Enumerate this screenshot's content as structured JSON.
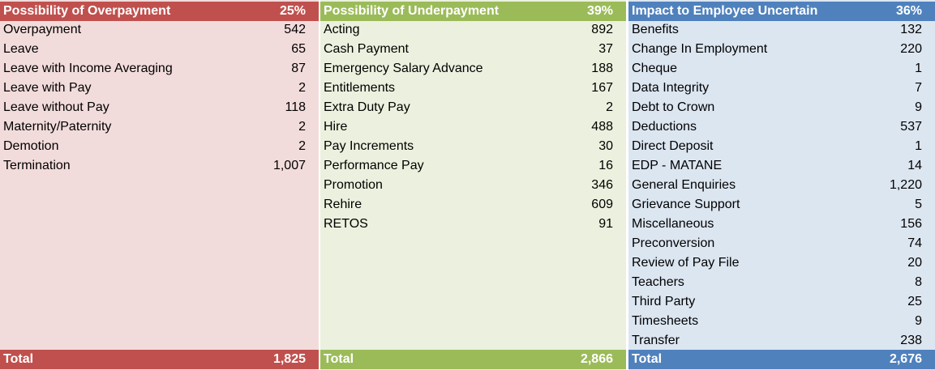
{
  "panels": [
    {
      "title": "Possibility of Overpayment",
      "percent": "25%",
      "rows": [
        {
          "label": "Overpayment",
          "value": "542"
        },
        {
          "label": "Leave",
          "value": "65"
        },
        {
          "label": "Leave with Income Averaging",
          "value": "87"
        },
        {
          "label": "Leave with Pay",
          "value": "2"
        },
        {
          "label": "Leave without Pay",
          "value": "118"
        },
        {
          "label": "Maternity/Paternity",
          "value": "2"
        },
        {
          "label": "Demotion",
          "value": "2"
        },
        {
          "label": "Termination",
          "value": "1,007"
        }
      ],
      "total_label": "Total",
      "total_value": "1,825"
    },
    {
      "title": "Possibility of Underpayment",
      "percent": "39%",
      "rows": [
        {
          "label": "Acting",
          "value": "892"
        },
        {
          "label": "Cash Payment",
          "value": "37"
        },
        {
          "label": "Emergency Salary Advance",
          "value": "188"
        },
        {
          "label": "Entitlements",
          "value": "167"
        },
        {
          "label": "Extra Duty Pay",
          "value": "2"
        },
        {
          "label": "Hire",
          "value": "488"
        },
        {
          "label": "Pay Increments",
          "value": "30"
        },
        {
          "label": "Performance Pay",
          "value": "16"
        },
        {
          "label": "Promotion",
          "value": "346"
        },
        {
          "label": "Rehire",
          "value": "609"
        },
        {
          "label": "RETOS",
          "value": "91"
        }
      ],
      "total_label": "Total",
      "total_value": "2,866"
    },
    {
      "title": "Impact to Employee Uncertain",
      "percent": "36%",
      "rows": [
        {
          "label": "Benefits",
          "value": "132"
        },
        {
          "label": "Change In Employment",
          "value": "220"
        },
        {
          "label": "Cheque",
          "value": "1"
        },
        {
          "label": "Data Integrity",
          "value": "7"
        },
        {
          "label": "Debt to Crown",
          "value": "9"
        },
        {
          "label": "Deductions",
          "value": "537"
        },
        {
          "label": "Direct Deposit",
          "value": "1"
        },
        {
          "label": "EDP - MATANE",
          "value": "14"
        },
        {
          "label": "General Enquiries",
          "value": "1,220"
        },
        {
          "label": "Grievance Support",
          "value": "5"
        },
        {
          "label": "Miscellaneous",
          "value": "156"
        },
        {
          "label": "Preconversion",
          "value": "74"
        },
        {
          "label": "Review of Pay File",
          "value": "20"
        },
        {
          "label": "Teachers",
          "value": "8"
        },
        {
          "label": "Third Party",
          "value": "25"
        },
        {
          "label": "Timesheets",
          "value": "9"
        },
        {
          "label": "Transfer",
          "value": "238"
        }
      ],
      "total_label": "Total",
      "total_value": "2,676"
    }
  ]
}
